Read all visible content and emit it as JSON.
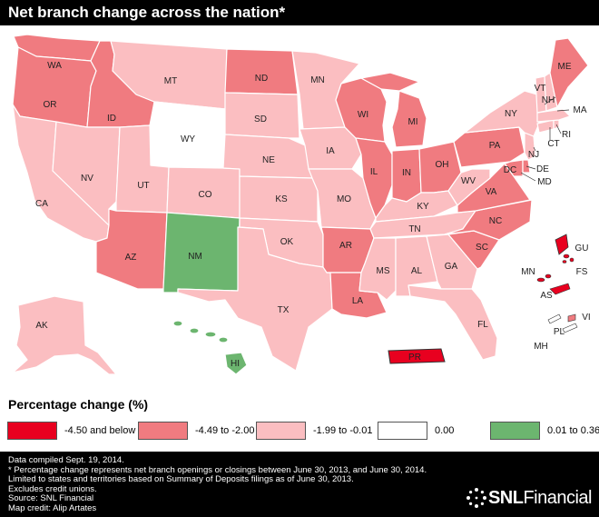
{
  "title": "Net branch change across the nation*",
  "colors": {
    "c1": "#e8001f",
    "c2": "#f07b80",
    "c3": "#fbbec1",
    "c4": "#ffffff",
    "c5": "#6cb56f"
  },
  "legend": {
    "title": "Percentage change (%)",
    "items": [
      {
        "label": "-4.50 and below",
        "color": "#e8001f"
      },
      {
        "label": "-4.49 to -2.00",
        "color": "#f07b80"
      },
      {
        "label": "-1.99 to -0.01",
        "color": "#fbbec1"
      },
      {
        "label": "0.00",
        "color": "#ffffff"
      },
      {
        "label": "0.01 to 0.36",
        "color": "#6cb56f"
      }
    ]
  },
  "states": {
    "WA": "WA",
    "OR": "OR",
    "CA": "CA",
    "ID": "ID",
    "NV": "NV",
    "MT": "MT",
    "WY": "WY",
    "UT": "UT",
    "AZ": "AZ",
    "CO": "CO",
    "NM": "NM",
    "ND": "ND",
    "SD": "SD",
    "NE": "NE",
    "KS": "KS",
    "OK": "OK",
    "TX": "TX",
    "MN": "MN",
    "IA": "IA",
    "MO": "MO",
    "AR": "AR",
    "LA": "LA",
    "WI": "WI",
    "IL": "IL",
    "MI": "MI",
    "IN": "IN",
    "OH": "OH",
    "KY": "KY",
    "TN": "TN",
    "MS": "MS",
    "AL": "AL",
    "GA": "GA",
    "FL": "FL",
    "SC": "SC",
    "NC": "NC",
    "VA": "VA",
    "WV": "WV",
    "PA": "PA",
    "NY": "NY",
    "VT": "VT",
    "NH": "NH",
    "ME": "ME",
    "MA": "MA",
    "RI": "RI",
    "CT": "CT",
    "NJ": "NJ",
    "DE": "DE",
    "MD": "MD",
    "DC": "DC",
    "AK": "AK",
    "HI": "HI",
    "PR": "PR",
    "GU": "GU",
    "MN2": "MN",
    "FS": "FS",
    "AS": "AS",
    "VI": "VI",
    "PL": "PL",
    "MH": "MH"
  },
  "footer": {
    "lines": [
      "Data compiled Sept. 19, 2014.",
      "* Percentage change represents net branch openings or closings between June 30, 2013, and June 30, 2014.",
      "Limited to states and territories based on Summary of Deposits filings as of June 30, 2013.",
      "Excludes credit unions.",
      "Source: SNL Financial",
      "Map credit: Alip Artates"
    ],
    "brand_bold": "SNL",
    "brand_light": "Financial"
  }
}
